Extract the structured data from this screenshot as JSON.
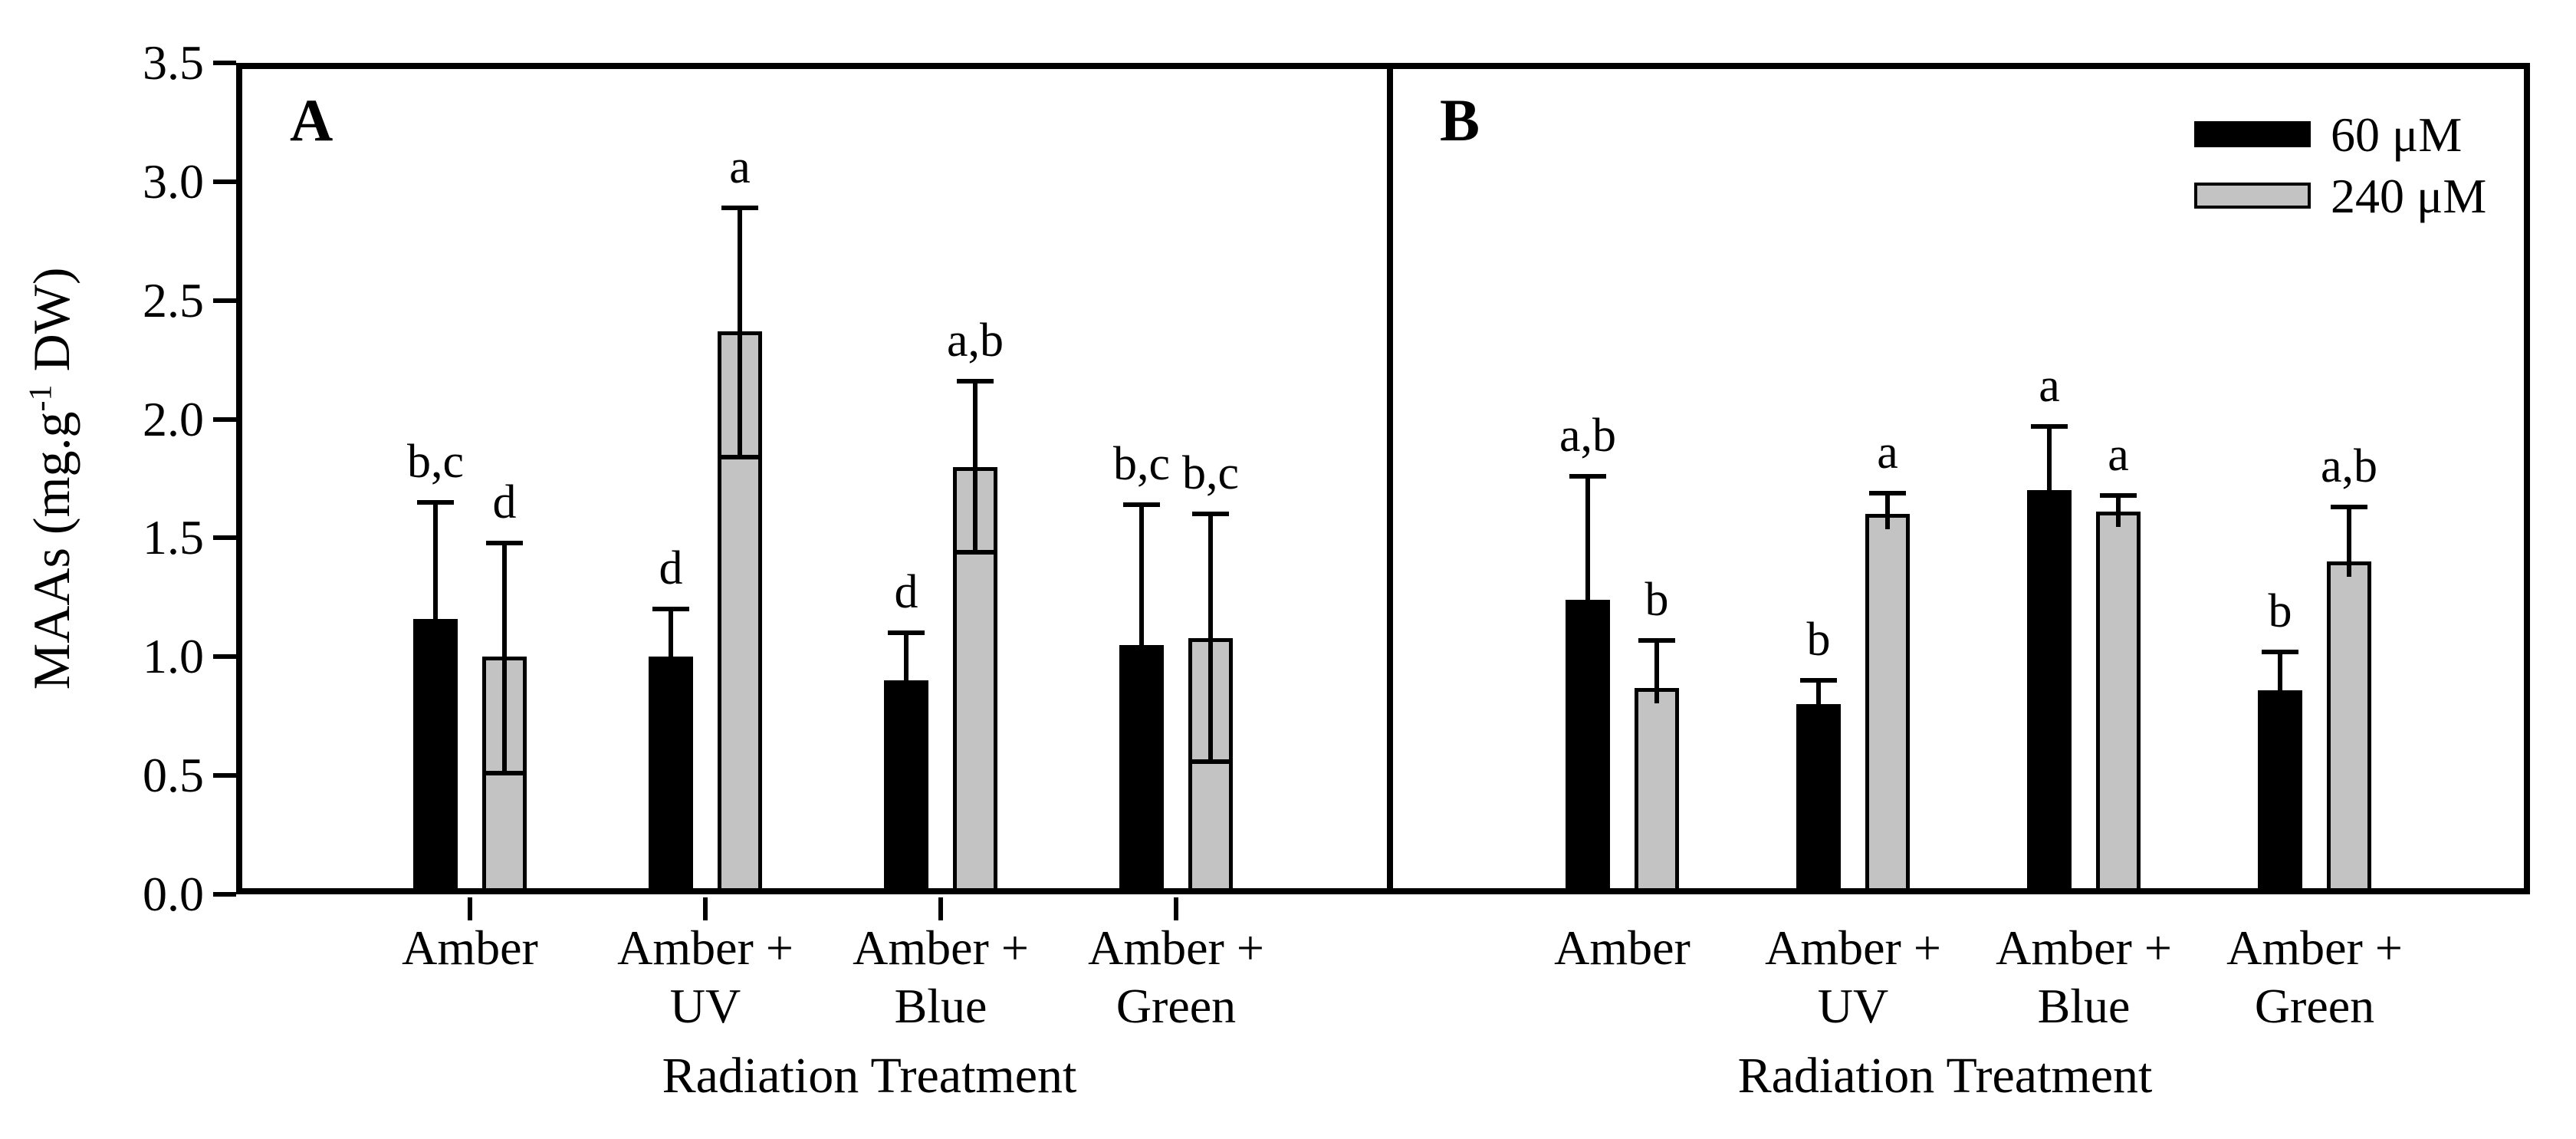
{
  "figure": {
    "y_label_prefix": "MAAs (mg.g",
    "y_label_sup": "-1",
    "y_label_suffix": " DW)"
  },
  "legend": {
    "entries": [
      {
        "label": "60 μM",
        "color": "#000000"
      },
      {
        "label": "240 μM",
        "color": "#c3c3c3"
      }
    ]
  },
  "chart_data": {
    "type": "bar",
    "title": "",
    "ylabel": "MAAs (mg.g-1 DW)",
    "xlabel": "Radiation Treatment",
    "ylim": [
      0,
      3.5
    ],
    "yticks": [
      0.0,
      0.5,
      1.0,
      1.5,
      2.0,
      2.5,
      3.0,
      3.5
    ],
    "grid": false,
    "legend_position": "top-right-of-panel-B",
    "categories": [
      "Amber",
      "Amber + UV",
      "Amber + Blue",
      "Amber + Green"
    ],
    "category_lines": [
      [
        "Amber"
      ],
      [
        "Amber +",
        "UV"
      ],
      [
        "Amber +",
        "Blue"
      ],
      [
        "Amber +",
        "Green"
      ]
    ],
    "panels": [
      {
        "label": "A",
        "x_axis_title": "Radiation Treatment",
        "has_x_tick_marks": true,
        "series": [
          {
            "name": "60 μM",
            "color": "#000000",
            "outlined": false,
            "values": [
              1.16,
              1.0,
              0.9,
              1.05
            ],
            "err_up": [
              0.49,
              0.2,
              0.2,
              0.59
            ],
            "err_down": null,
            "sig_letters": [
              "b,c",
              "d",
              "d",
              "b,c"
            ]
          },
          {
            "name": "240 μM",
            "color": "#c3c3c3",
            "outlined": true,
            "values": [
              1.0,
              2.37,
              1.8,
              1.08
            ],
            "err_up": [
              0.48,
              0.52,
              0.36,
              0.52
            ],
            "err_down": [
              0.49,
              0.53,
              0.36,
              0.52
            ],
            "sig_letters": [
              "d",
              "a",
              "a,b",
              "b,c"
            ]
          }
        ]
      },
      {
        "label": "B",
        "x_axis_title": "Radiation Treatment",
        "has_x_tick_marks": false,
        "series": [
          {
            "name": "60 μM",
            "color": "#000000",
            "outlined": false,
            "values": [
              1.24,
              0.8,
              1.7,
              0.86
            ],
            "err_up": [
              0.52,
              0.1,
              0.27,
              0.16
            ],
            "err_down": null,
            "sig_letters": [
              "a,b",
              "b",
              "a",
              "b"
            ]
          },
          {
            "name": "240 μM",
            "color": "#c3c3c3",
            "outlined": true,
            "values": [
              0.87,
              1.6,
              1.61,
              1.4
            ],
            "err_up": [
              0.2,
              0.09,
              0.07,
              0.23
            ],
            "err_down": null,
            "sig_letters": [
              "b",
              "a",
              "a",
              "a,b"
            ]
          }
        ]
      }
    ]
  }
}
